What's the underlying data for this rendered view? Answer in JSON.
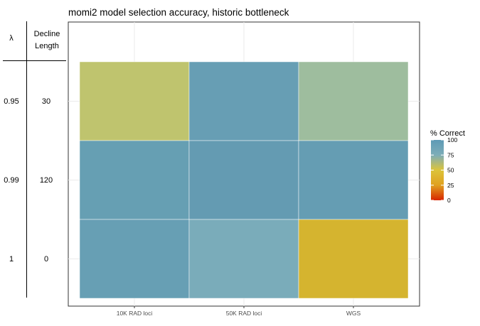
{
  "title": "momi2 model selection accuracy, historic bottleneck",
  "side_table": {
    "header_lambda": "λ",
    "header_decline_1": "Decline",
    "header_decline_2": "Length",
    "rows": [
      {
        "lambda": "0.95",
        "decline": "30"
      },
      {
        "lambda": "0.99",
        "decline": "120"
      },
      {
        "lambda": "1",
        "decline": "0"
      }
    ]
  },
  "chart_data": {
    "type": "heatmap",
    "title": "momi2 model selection accuracy, historic bottleneck",
    "x_categories": [
      "10K RAD loci",
      "50K RAD loci",
      "WGS"
    ],
    "y_rows": [
      "0.95 / 30",
      "0.99 / 120",
      "1 / 0"
    ],
    "values": [
      [
        66,
        98,
        82
      ],
      [
        98,
        100,
        99
      ],
      [
        98,
        90,
        55
      ]
    ],
    "colors": [
      [
        "#bfc46e",
        "#679eb4",
        "#9ebd9e"
      ],
      [
        "#669fb3",
        "#649bb2",
        "#659db3"
      ],
      [
        "#679fb4",
        "#7aacba",
        "#d5b42f"
      ]
    ],
    "legend": {
      "title": "% Correct",
      "ticks": [
        100,
        75,
        50,
        25,
        0
      ],
      "gradient_colors": [
        "#d72500",
        "#e0a020",
        "#dcc43a",
        "#7dadb8",
        "#5e9ab6"
      ],
      "position": "right"
    },
    "grid": true
  }
}
